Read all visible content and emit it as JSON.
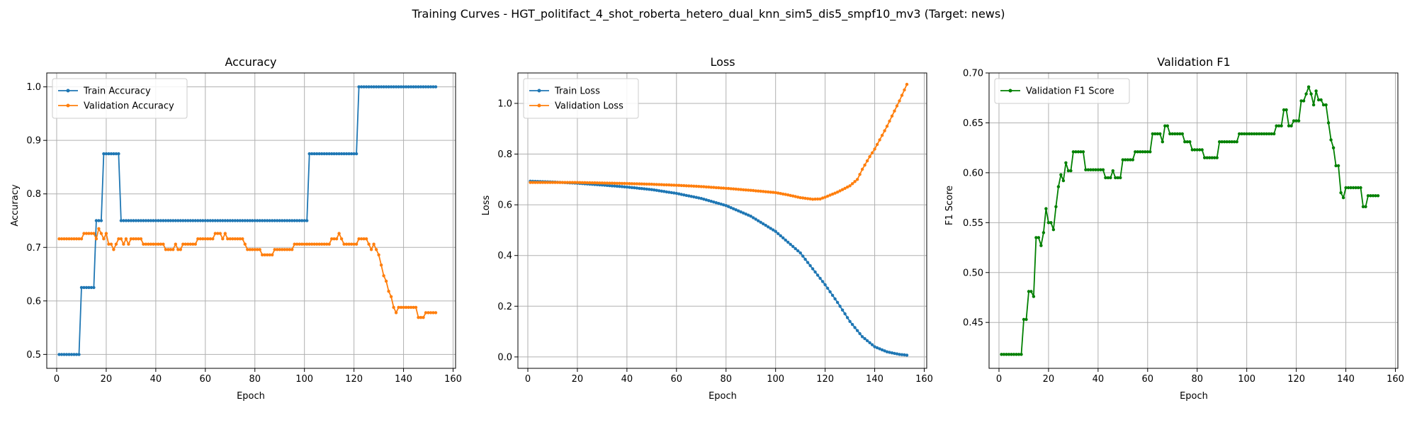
{
  "figure": {
    "suptitle": "Training Curves - HGT_politifact_4_shot_roberta_hetero_dual_knn_sim5_dis5_smpf10_mv3 (Target: news)"
  },
  "colors": {
    "blue": "#1f77b4",
    "orange": "#ff7f0e",
    "green": "#008000",
    "grid": "#b0b0b0"
  },
  "chart_data": [
    {
      "type": "line",
      "title": "Accuracy",
      "xlabel": "Epoch",
      "ylabel": "Accuracy",
      "xlim": [
        -4,
        161
      ],
      "ylim": [
        0.474,
        1.026
      ],
      "xticks": [
        0,
        20,
        40,
        60,
        80,
        100,
        120,
        140,
        160
      ],
      "yticks": [
        0.5,
        0.6,
        0.7,
        0.8,
        0.9,
        1.0
      ],
      "ytick_labels": [
        "0.5",
        "0.6",
        "0.7",
        "0.8",
        "0.9",
        "1.0"
      ],
      "grid": true,
      "legend": "upper-left",
      "series": [
        {
          "name": "Train Accuracy",
          "color": "#1f77b4",
          "segments": [
            [
              1,
              9,
              0.5
            ],
            [
              10,
              15,
              0.625
            ],
            [
              16,
              18,
              0.75
            ],
            [
              19,
              25,
              0.875
            ],
            [
              26,
              101,
              0.75
            ],
            [
              102,
              121,
              0.875
            ],
            [
              122,
              153,
              1.0
            ]
          ]
        },
        {
          "name": "Validation Accuracy",
          "color": "#ff7f0e",
          "points": [
            [
              1,
              0.716
            ],
            [
              10,
              0.716
            ],
            [
              11,
              0.726
            ],
            [
              15,
              0.726
            ],
            [
              16,
              0.716
            ],
            [
              17,
              0.735
            ],
            [
              18,
              0.726
            ],
            [
              19,
              0.716
            ],
            [
              20,
              0.726
            ],
            [
              21,
              0.706
            ],
            [
              22,
              0.706
            ],
            [
              23,
              0.696
            ],
            [
              24,
              0.706
            ],
            [
              25,
              0.716
            ],
            [
              26,
              0.716
            ],
            [
              27,
              0.706
            ],
            [
              28,
              0.716
            ],
            [
              29,
              0.706
            ],
            [
              30,
              0.716
            ],
            [
              34,
              0.716
            ],
            [
              35,
              0.706
            ],
            [
              43,
              0.706
            ],
            [
              44,
              0.696
            ],
            [
              47,
              0.696
            ],
            [
              48,
              0.706
            ],
            [
              49,
              0.696
            ],
            [
              50,
              0.696
            ],
            [
              51,
              0.706
            ],
            [
              56,
              0.706
            ],
            [
              57,
              0.716
            ],
            [
              63,
              0.716
            ],
            [
              64,
              0.726
            ],
            [
              66,
              0.726
            ],
            [
              67,
              0.716
            ],
            [
              68,
              0.726
            ],
            [
              69,
              0.716
            ],
            [
              75,
              0.716
            ],
            [
              76,
              0.706
            ],
            [
              77,
              0.696
            ],
            [
              82,
              0.696
            ],
            [
              83,
              0.686
            ],
            [
              87,
              0.686
            ],
            [
              88,
              0.696
            ],
            [
              95,
              0.696
            ],
            [
              96,
              0.706
            ],
            [
              110,
              0.706
            ],
            [
              111,
              0.716
            ],
            [
              113,
              0.716
            ],
            [
              114,
              0.726
            ],
            [
              115,
              0.716
            ],
            [
              116,
              0.706
            ],
            [
              121,
              0.706
            ],
            [
              122,
              0.716
            ],
            [
              125,
              0.716
            ],
            [
              126,
              0.706
            ],
            [
              127,
              0.696
            ],
            [
              128,
              0.706
            ],
            [
              129,
              0.696
            ],
            [
              130,
              0.686
            ],
            [
              131,
              0.667
            ],
            [
              132,
              0.647
            ],
            [
              133,
              0.637
            ],
            [
              134,
              0.618
            ],
            [
              135,
              0.608
            ],
            [
              136,
              0.588
            ],
            [
              137,
              0.578
            ],
            [
              138,
              0.588
            ],
            [
              145,
              0.588
            ],
            [
              146,
              0.569
            ],
            [
              148,
              0.569
            ],
            [
              149,
              0.578
            ],
            [
              153,
              0.578
            ]
          ]
        }
      ]
    },
    {
      "type": "line",
      "title": "Loss",
      "xlabel": "Epoch",
      "ylabel": "Loss",
      "xlim": [
        -4,
        161
      ],
      "ylim": [
        -0.045,
        1.12
      ],
      "xticks": [
        0,
        20,
        40,
        60,
        80,
        100,
        120,
        140,
        160
      ],
      "yticks": [
        0.0,
        0.2,
        0.4,
        0.6,
        0.8,
        1.0
      ],
      "ytick_labels": [
        "0.0",
        "0.2",
        "0.4",
        "0.6",
        "0.8",
        "1.0"
      ],
      "grid": true,
      "legend": "upper-left",
      "series": [
        {
          "name": "Train Loss",
          "color": "#1f77b4",
          "points": [
            [
              1,
              0.693
            ],
            [
              10,
              0.69
            ],
            [
              20,
              0.685
            ],
            [
              30,
              0.678
            ],
            [
              40,
              0.67
            ],
            [
              50,
              0.66
            ],
            [
              60,
              0.645
            ],
            [
              70,
              0.625
            ],
            [
              80,
              0.597
            ],
            [
              90,
              0.555
            ],
            [
              100,
              0.495
            ],
            [
              110,
              0.41
            ],
            [
              120,
              0.285
            ],
            [
              125,
              0.215
            ],
            [
              130,
              0.14
            ],
            [
              135,
              0.08
            ],
            [
              140,
              0.04
            ],
            [
              145,
              0.02
            ],
            [
              150,
              0.01
            ],
            [
              153,
              0.007
            ]
          ]
        },
        {
          "name": "Validation Loss",
          "color": "#ff7f0e",
          "points": [
            [
              1,
              0.688
            ],
            [
              10,
              0.688
            ],
            [
              20,
              0.688
            ],
            [
              30,
              0.686
            ],
            [
              40,
              0.684
            ],
            [
              50,
              0.681
            ],
            [
              60,
              0.677
            ],
            [
              70,
              0.672
            ],
            [
              80,
              0.665
            ],
            [
              90,
              0.657
            ],
            [
              100,
              0.648
            ],
            [
              105,
              0.639
            ],
            [
              110,
              0.628
            ],
            [
              115,
              0.622
            ],
            [
              118,
              0.623
            ],
            [
              120,
              0.63
            ],
            [
              125,
              0.65
            ],
            [
              130,
              0.675
            ],
            [
              133,
              0.7
            ],
            [
              135,
              0.74
            ],
            [
              138,
              0.79
            ],
            [
              140,
              0.82
            ],
            [
              145,
              0.91
            ],
            [
              150,
              1.01
            ],
            [
              153,
              1.075
            ]
          ]
        }
      ]
    },
    {
      "type": "line",
      "title": "Validation F1",
      "xlabel": "Epoch",
      "ylabel": "F1 Score",
      "xlim": [
        -4,
        161
      ],
      "ylim": [
        0.404,
        0.7
      ],
      "xticks": [
        0,
        20,
        40,
        60,
        80,
        100,
        120,
        140,
        160
      ],
      "yticks": [
        0.45,
        0.5,
        0.55,
        0.6,
        0.65,
        0.7
      ],
      "ytick_labels": [
        "0.45",
        "0.50",
        "0.55",
        "0.60",
        "0.65",
        "0.70"
      ],
      "grid": true,
      "legend": "upper-left",
      "series": [
        {
          "name": "Validation F1 Score",
          "color": "#008000",
          "points": [
            [
              1,
              0.418
            ],
            [
              9,
              0.418
            ],
            [
              10,
              0.453
            ],
            [
              11,
              0.453
            ],
            [
              12,
              0.481
            ],
            [
              13,
              0.481
            ],
            [
              14,
              0.476
            ],
            [
              15,
              0.535
            ],
            [
              16,
              0.535
            ],
            [
              17,
              0.527
            ],
            [
              18,
              0.54
            ],
            [
              19,
              0.564
            ],
            [
              20,
              0.55
            ],
            [
              21,
              0.55
            ],
            [
              22,
              0.543
            ],
            [
              23,
              0.566
            ],
            [
              24,
              0.586
            ],
            [
              25,
              0.598
            ],
            [
              26,
              0.592
            ],
            [
              27,
              0.61
            ],
            [
              28,
              0.602
            ],
            [
              29,
              0.602
            ],
            [
              30,
              0.621
            ],
            [
              34,
              0.621
            ],
            [
              35,
              0.603
            ],
            [
              42,
              0.603
            ],
            [
              43,
              0.595
            ],
            [
              45,
              0.595
            ],
            [
              46,
              0.602
            ],
            [
              47,
              0.595
            ],
            [
              49,
              0.595
            ],
            [
              50,
              0.613
            ],
            [
              54,
              0.613
            ],
            [
              55,
              0.621
            ],
            [
              61,
              0.621
            ],
            [
              62,
              0.639
            ],
            [
              65,
              0.639
            ],
            [
              66,
              0.631
            ],
            [
              67,
              0.647
            ],
            [
              68,
              0.647
            ],
            [
              69,
              0.639
            ],
            [
              74,
              0.639
            ],
            [
              75,
              0.631
            ],
            [
              77,
              0.631
            ],
            [
              78,
              0.623
            ],
            [
              82,
              0.623
            ],
            [
              83,
              0.615
            ],
            [
              88,
              0.615
            ],
            [
              89,
              0.631
            ],
            [
              96,
              0.631
            ],
            [
              97,
              0.639
            ],
            [
              111,
              0.639
            ],
            [
              112,
              0.647
            ],
            [
              114,
              0.647
            ],
            [
              115,
              0.663
            ],
            [
              116,
              0.663
            ],
            [
              117,
              0.647
            ],
            [
              118,
              0.647
            ],
            [
              119,
              0.652
            ],
            [
              121,
              0.652
            ],
            [
              122,
              0.672
            ],
            [
              123,
              0.672
            ],
            [
              124,
              0.679
            ],
            [
              125,
              0.686
            ],
            [
              126,
              0.679
            ],
            [
              127,
              0.668
            ],
            [
              128,
              0.682
            ],
            [
              129,
              0.673
            ],
            [
              130,
              0.673
            ],
            [
              131,
              0.668
            ],
            [
              132,
              0.668
            ],
            [
              133,
              0.65
            ],
            [
              134,
              0.633
            ],
            [
              135,
              0.625
            ],
            [
              136,
              0.607
            ],
            [
              137,
              0.607
            ],
            [
              138,
              0.58
            ],
            [
              139,
              0.575
            ],
            [
              140,
              0.585
            ],
            [
              146,
              0.585
            ],
            [
              147,
              0.566
            ],
            [
              148,
              0.566
            ],
            [
              149,
              0.577
            ],
            [
              153,
              0.577
            ]
          ]
        }
      ]
    }
  ]
}
